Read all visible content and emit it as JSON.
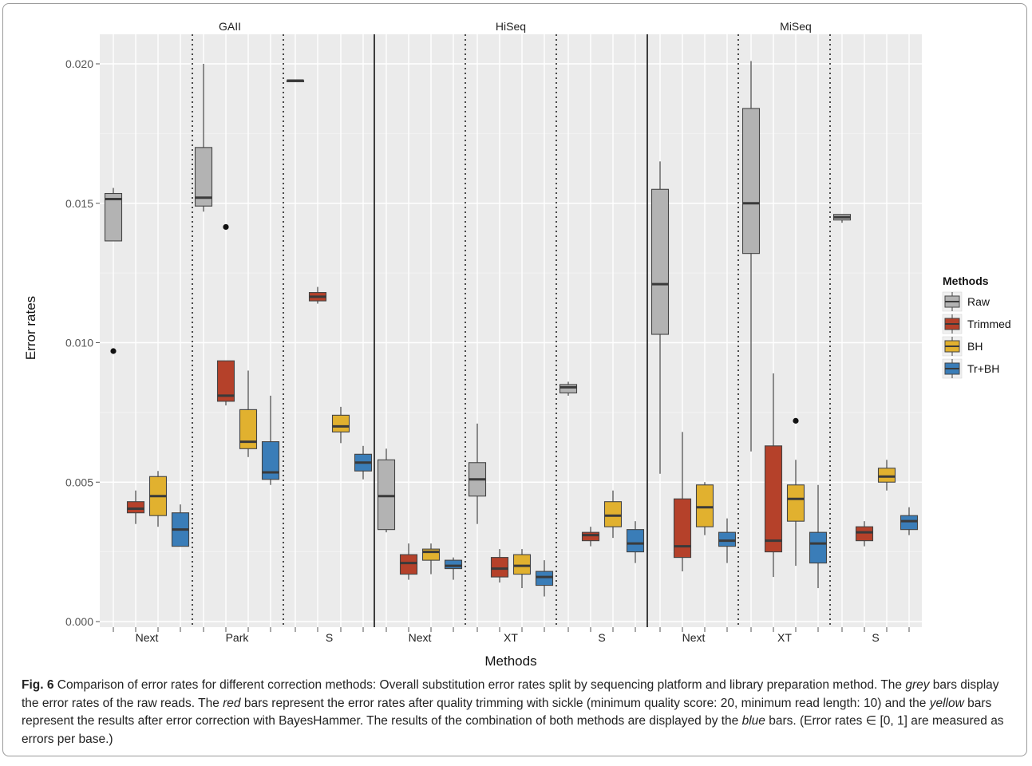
{
  "chart_data": {
    "type": "boxplot",
    "xlabel": "Methods",
    "ylabel": "Error rates",
    "ylim": [
      0,
      0.0215
    ],
    "yticks": [
      "0.000",
      "0.005",
      "0.010",
      "0.015",
      "0.020"
    ],
    "ytick_values": [
      0,
      0.005,
      0.01,
      0.015,
      0.02
    ],
    "grid": true,
    "legend": {
      "title": "Methods",
      "placement": "right",
      "entries": [
        {
          "name": "Raw",
          "color": "#b3b3b3"
        },
        {
          "name": "Trimmed",
          "color": "#b5412a"
        },
        {
          "name": "BH",
          "color": "#e1b12f"
        },
        {
          "name": "Tr+BH",
          "color": "#3a7db8"
        }
      ]
    },
    "panels": [
      {
        "name": "GAII",
        "groups": [
          {
            "label": "Next",
            "boxes": [
              {
                "method": "Raw",
                "min": 0.01365,
                "q1": 0.01365,
                "median": 0.01515,
                "q3": 0.01535,
                "max": 0.01555,
                "outliers": [
                  0.0097
                ]
              },
              {
                "method": "Trimmed",
                "min": 0.0035,
                "q1": 0.0039,
                "median": 0.00405,
                "q3": 0.0043,
                "max": 0.0047,
                "outliers": []
              },
              {
                "method": "BH",
                "min": 0.0034,
                "q1": 0.0038,
                "median": 0.0045,
                "q3": 0.0052,
                "max": 0.0054,
                "outliers": []
              },
              {
                "method": "Tr+BH",
                "min": 0.0027,
                "q1": 0.0027,
                "median": 0.0033,
                "q3": 0.0039,
                "max": 0.0042,
                "outliers": []
              }
            ]
          },
          {
            "label": "Park",
            "boxes": [
              {
                "method": "Raw",
                "min": 0.0147,
                "q1": 0.0149,
                "median": 0.0152,
                "q3": 0.017,
                "max": 0.02,
                "outliers": []
              },
              {
                "method": "Trimmed",
                "min": 0.00775,
                "q1": 0.0079,
                "median": 0.0081,
                "q3": 0.00935,
                "max": 0.00935,
                "outliers": [
                  0.01415
                ]
              },
              {
                "method": "BH",
                "min": 0.0059,
                "q1": 0.0062,
                "median": 0.00645,
                "q3": 0.0076,
                "max": 0.009,
                "outliers": []
              },
              {
                "method": "Tr+BH",
                "min": 0.0049,
                "q1": 0.0051,
                "median": 0.00535,
                "q3": 0.00645,
                "max": 0.0081,
                "outliers": []
              }
            ]
          },
          {
            "label": "S",
            "boxes": [
              {
                "method": "Raw",
                "min": 0.0194,
                "q1": 0.0194,
                "median": 0.0194,
                "q3": 0.0194,
                "max": 0.0194,
                "outliers": []
              },
              {
                "method": "Trimmed",
                "min": 0.0114,
                "q1": 0.0115,
                "median": 0.01165,
                "q3": 0.0118,
                "max": 0.012,
                "outliers": []
              },
              {
                "method": "BH",
                "min": 0.0064,
                "q1": 0.0068,
                "median": 0.007,
                "q3": 0.0074,
                "max": 0.0077,
                "outliers": []
              },
              {
                "method": "Tr+BH",
                "min": 0.0051,
                "q1": 0.0054,
                "median": 0.0057,
                "q3": 0.006,
                "max": 0.0063,
                "outliers": []
              }
            ]
          }
        ]
      },
      {
        "name": "HiSeq",
        "groups": [
          {
            "label": "Next",
            "boxes": [
              {
                "method": "Raw",
                "min": 0.0032,
                "q1": 0.0033,
                "median": 0.0045,
                "q3": 0.0058,
                "max": 0.0062,
                "outliers": []
              },
              {
                "method": "Trimmed",
                "min": 0.0015,
                "q1": 0.0017,
                "median": 0.0021,
                "q3": 0.0024,
                "max": 0.0028,
                "outliers": []
              },
              {
                "method": "BH",
                "min": 0.0017,
                "q1": 0.0022,
                "median": 0.0025,
                "q3": 0.0026,
                "max": 0.0028,
                "outliers": []
              },
              {
                "method": "Tr+BH",
                "min": 0.0015,
                "q1": 0.0019,
                "median": 0.002,
                "q3": 0.0022,
                "max": 0.0023,
                "outliers": []
              }
            ]
          },
          {
            "label": "XT",
            "boxes": [
              {
                "method": "Raw",
                "min": 0.0035,
                "q1": 0.0045,
                "median": 0.0051,
                "q3": 0.0057,
                "max": 0.0071,
                "outliers": []
              },
              {
                "method": "Trimmed",
                "min": 0.0014,
                "q1": 0.0016,
                "median": 0.0019,
                "q3": 0.0023,
                "max": 0.0026,
                "outliers": []
              },
              {
                "method": "BH",
                "min": 0.0012,
                "q1": 0.0017,
                "median": 0.002,
                "q3": 0.0024,
                "max": 0.0026,
                "outliers": []
              },
              {
                "method": "Tr+BH",
                "min": 0.0009,
                "q1": 0.0013,
                "median": 0.0016,
                "q3": 0.0018,
                "max": 0.0022,
                "outliers": []
              }
            ]
          },
          {
            "label": "S",
            "boxes": [
              {
                "method": "Raw",
                "min": 0.0081,
                "q1": 0.0082,
                "median": 0.0084,
                "q3": 0.0085,
                "max": 0.0086,
                "outliers": []
              },
              {
                "method": "Trimmed",
                "min": 0.0027,
                "q1": 0.0029,
                "median": 0.0031,
                "q3": 0.0032,
                "max": 0.0034,
                "outliers": []
              },
              {
                "method": "BH",
                "min": 0.003,
                "q1": 0.0034,
                "median": 0.0038,
                "q3": 0.0043,
                "max": 0.0047,
                "outliers": []
              },
              {
                "method": "Tr+BH",
                "min": 0.0021,
                "q1": 0.0025,
                "median": 0.0028,
                "q3": 0.0033,
                "max": 0.0036,
                "outliers": []
              }
            ]
          }
        ]
      },
      {
        "name": "MiSeq",
        "groups": [
          {
            "label": "Next",
            "boxes": [
              {
                "method": "Raw",
                "min": 0.0053,
                "q1": 0.0103,
                "median": 0.0121,
                "q3": 0.0155,
                "max": 0.0165,
                "outliers": []
              },
              {
                "method": "Trimmed",
                "min": 0.0018,
                "q1": 0.0023,
                "median": 0.0027,
                "q3": 0.0044,
                "max": 0.0068,
                "outliers": []
              },
              {
                "method": "BH",
                "min": 0.0031,
                "q1": 0.0034,
                "median": 0.0041,
                "q3": 0.0049,
                "max": 0.005,
                "outliers": []
              },
              {
                "method": "Tr+BH",
                "min": 0.0021,
                "q1": 0.0027,
                "median": 0.0029,
                "q3": 0.0032,
                "max": 0.0037,
                "outliers": []
              }
            ]
          },
          {
            "label": "XT",
            "boxes": [
              {
                "method": "Raw",
                "min": 0.0061,
                "q1": 0.0132,
                "median": 0.015,
                "q3": 0.0184,
                "max": 0.0201,
                "outliers": []
              },
              {
                "method": "Trimmed",
                "min": 0.0016,
                "q1": 0.0025,
                "median": 0.0029,
                "q3": 0.0063,
                "max": 0.0089,
                "outliers": []
              },
              {
                "method": "BH",
                "min": 0.002,
                "q1": 0.0036,
                "median": 0.0044,
                "q3": 0.0049,
                "max": 0.0058,
                "outliers": [
                  0.0072
                ]
              },
              {
                "method": "Tr+BH",
                "min": 0.0012,
                "q1": 0.0021,
                "median": 0.0028,
                "q3": 0.0032,
                "max": 0.0049,
                "outliers": []
              }
            ]
          },
          {
            "label": "S",
            "boxes": [
              {
                "method": "Raw",
                "min": 0.0143,
                "q1": 0.0144,
                "median": 0.0145,
                "q3": 0.0146,
                "max": 0.0146,
                "outliers": []
              },
              {
                "method": "Trimmed",
                "min": 0.0027,
                "q1": 0.0029,
                "median": 0.0032,
                "q3": 0.0034,
                "max": 0.0036,
                "outliers": []
              },
              {
                "method": "BH",
                "min": 0.0047,
                "q1": 0.005,
                "median": 0.0052,
                "q3": 0.0055,
                "max": 0.0058,
                "outliers": []
              },
              {
                "method": "Tr+BH",
                "min": 0.0031,
                "q1": 0.0033,
                "median": 0.0036,
                "q3": 0.0038,
                "max": 0.0041,
                "outliers": []
              }
            ]
          }
        ]
      }
    ]
  },
  "caption": {
    "label": "Fig. 6",
    "text_1": " Comparison of error rates for different correction methods: Overall substitution error rates split by sequencing platform and library preparation method. The ",
    "grey": "grey",
    "text_2": " bars display the error rates of the raw reads. The ",
    "red": "red",
    "text_3": " bars represent the error rates after quality trimming with sickle (minimum quality score: 20, minimum read length: 10) and the ",
    "yellow": "yellow",
    "text_4": " bars represent the results after error correction with BayesHammer. The results of the combination of both methods are displayed by the ",
    "blue": "blue",
    "text_5": " bars. (Error rates ∈ [0, 1] are measured as errors per base.)"
  }
}
